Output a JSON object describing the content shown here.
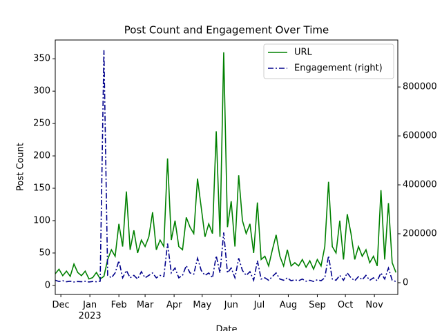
{
  "chart_data": {
    "type": "line",
    "title": "Post Count and Engagement Over Time",
    "xlabel": "Date",
    "ylabel": "Post Count",
    "x": [
      0,
      4,
      8,
      12,
      16,
      20,
      24,
      28,
      32,
      36,
      40,
      44,
      48,
      52,
      56,
      60,
      64,
      68,
      72,
      76,
      80,
      84,
      88,
      92,
      96,
      100,
      104,
      108,
      112,
      116,
      120,
      124,
      128,
      132,
      136,
      140,
      144,
      148,
      152,
      156,
      160,
      164,
      168,
      172,
      176,
      180,
      184,
      188,
      192,
      196,
      200,
      204,
      208,
      212,
      216,
      220,
      224,
      228,
      232,
      236,
      240,
      244,
      248,
      252,
      256,
      260,
      264,
      268,
      272,
      276,
      280,
      284,
      288,
      292,
      296,
      300,
      304,
      308,
      312,
      316,
      320,
      324,
      328,
      332,
      336,
      340,
      344,
      348,
      352,
      356,
      360,
      364
    ],
    "xlim": [
      0,
      366
    ],
    "xticks": [
      {
        "value": 6,
        "label": "Dec"
      },
      {
        "value": 37,
        "label": "Jan\n2023"
      },
      {
        "value": 68,
        "label": "Feb"
      },
      {
        "value": 96,
        "label": "Mar"
      },
      {
        "value": 127,
        "label": "Apr"
      },
      {
        "value": 157,
        "label": "May"
      },
      {
        "value": 188,
        "label": "Jun"
      },
      {
        "value": 218,
        "label": "Jul"
      },
      {
        "value": 249,
        "label": "Aug"
      },
      {
        "value": 280,
        "label": "Sep"
      },
      {
        "value": 310,
        "label": "Oct"
      },
      {
        "value": 341,
        "label": "Nov"
      }
    ],
    "ylim": [
      -14,
      379
    ],
    "yticks": [
      0,
      50,
      100,
      150,
      200,
      250,
      300,
      350
    ],
    "y2lim": [
      -48000,
      992000
    ],
    "y2ticks": [
      0,
      200000,
      400000,
      600000,
      800000
    ],
    "legend": "upper right",
    "series": [
      {
        "name": "URL",
        "color": "#008000",
        "linestyle": "solid",
        "values": [
          18,
          25,
          15,
          22,
          14,
          33,
          20,
          15,
          22,
          10,
          12,
          20,
          10,
          14,
          40,
          55,
          45,
          95,
          60,
          145,
          55,
          85,
          50,
          70,
          60,
          75,
          113,
          55,
          70,
          60,
          196,
          70,
          100,
          60,
          55,
          105,
          90,
          80,
          165,
          120,
          75,
          95,
          80,
          238,
          75,
          360,
          90,
          130,
          60,
          170,
          100,
          80,
          95,
          50,
          128,
          40,
          45,
          30,
          55,
          78,
          45,
          30,
          55,
          30,
          35,
          30,
          40,
          28,
          38,
          25,
          40,
          30,
          60,
          160,
          60,
          50,
          100,
          40,
          110,
          80,
          40,
          60,
          45,
          55,
          35,
          45,
          30,
          147,
          40,
          127,
          35,
          20
        ]
      },
      {
        "name": "Engagement (right)",
        "color": "#00008b",
        "linestyle": "dashdot",
        "axis": "y2",
        "values": [
          10000,
          5000,
          8000,
          4000,
          6000,
          3000,
          5000,
          4000,
          6000,
          3000,
          5000,
          4000,
          6000,
          950000,
          30000,
          20000,
          40000,
          90000,
          20000,
          50000,
          20000,
          30000,
          15000,
          45000,
          20000,
          30000,
          40000,
          20000,
          30000,
          25000,
          160000,
          40000,
          60000,
          20000,
          30000,
          70000,
          40000,
          35000,
          100000,
          50000,
          30000,
          40000,
          20000,
          110000,
          40000,
          205000,
          40000,
          60000,
          20000,
          100000,
          50000,
          30000,
          45000,
          10000,
          90000,
          15000,
          20000,
          10000,
          25000,
          40000,
          15000,
          10000,
          20000,
          8000,
          12000,
          8000,
          15000,
          6000,
          10000,
          5000,
          12000,
          8000,
          20000,
          110000,
          15000,
          10000,
          30000,
          10000,
          40000,
          20000,
          8000,
          25000,
          12000,
          30000,
          10000,
          20000,
          8000,
          40000,
          15000,
          60000,
          10000,
          5000
        ]
      }
    ]
  }
}
